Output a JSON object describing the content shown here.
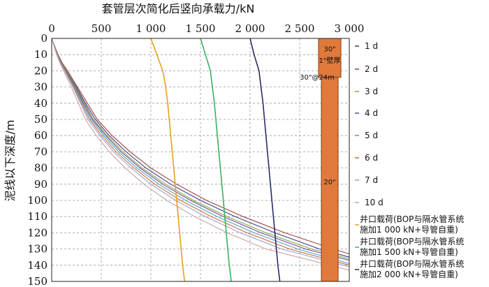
{
  "chart_data": {
    "type": "line",
    "title": "",
    "xlabel": "套管层次简化后竖向承载力/kN",
    "ylabel": "泥线以下深度/m",
    "x_ticks": [
      "0",
      "500",
      "1 000",
      "1 500",
      "2 000",
      "2 500",
      "3 000"
    ],
    "y_ticks": [
      "0",
      "10",
      "20",
      "30",
      "40",
      "50",
      "60",
      "70",
      "80",
      "90",
      "100",
      "110",
      "120",
      "130",
      "140",
      "150"
    ],
    "xlim": [
      0,
      3000
    ],
    "ylim": [
      150,
      0
    ],
    "x_axis_position": "top",
    "y_inverted": true,
    "grid": true,
    "legend_position": "right",
    "series": [
      {
        "name": "1 d",
        "color": "#3a3a8c",
        "depth": [
          0,
          5,
          10,
          15,
          20,
          30,
          40,
          50,
          60,
          70,
          80,
          90,
          100,
          110,
          120,
          130,
          135
        ],
        "load": [
          0,
          30,
          60,
          100,
          150,
          250,
          340,
          440,
          580,
          750,
          950,
          1200,
          1500,
          1850,
          2250,
          2700,
          3000
        ]
      },
      {
        "name": "2 d",
        "color": "#a0443c",
        "depth": [
          0,
          5,
          10,
          15,
          20,
          30,
          40,
          50,
          60,
          70,
          80,
          90,
          100,
          110,
          120,
          130,
          133
        ],
        "load": [
          0,
          32,
          65,
          105,
          160,
          260,
          360,
          460,
          610,
          790,
          1000,
          1260,
          1560,
          1930,
          2350,
          2840,
          3000
        ]
      },
      {
        "name": "3 d",
        "color": "#8aa83c",
        "depth": [
          0,
          5,
          10,
          15,
          20,
          30,
          40,
          50,
          60,
          70,
          80,
          90,
          100,
          110,
          120,
          130,
          136
        ],
        "load": [
          0,
          30,
          62,
          100,
          150,
          245,
          330,
          420,
          560,
          720,
          910,
          1150,
          1430,
          1770,
          2160,
          2620,
          3000
        ]
      },
      {
        "name": "4 d",
        "color": "#6a4a9a",
        "depth": [
          0,
          5,
          10,
          15,
          20,
          30,
          40,
          50,
          60,
          70,
          80,
          90,
          100,
          110,
          120,
          130,
          137
        ],
        "load": [
          0,
          29,
          60,
          98,
          145,
          240,
          320,
          410,
          545,
          700,
          890,
          1120,
          1400,
          1730,
          2110,
          2560,
          3000
        ]
      },
      {
        "name": "5 d",
        "color": "#4aa0b8",
        "depth": [
          0,
          5,
          10,
          15,
          20,
          30,
          40,
          50,
          60,
          70,
          80,
          90,
          100,
          110,
          120,
          130,
          139
        ],
        "load": [
          0,
          28,
          58,
          95,
          140,
          230,
          310,
          395,
          525,
          675,
          860,
          1080,
          1350,
          1670,
          2040,
          2480,
          3000
        ]
      },
      {
        "name": "6 d",
        "color": "#c86c3c",
        "depth": [
          0,
          5,
          10,
          15,
          20,
          30,
          40,
          50,
          60,
          70,
          80,
          90,
          100,
          110,
          120,
          130,
          140
        ],
        "load": [
          0,
          27,
          56,
          92,
          135,
          222,
          300,
          380,
          505,
          650,
          830,
          1040,
          1300,
          1610,
          1970,
          2400,
          3000
        ]
      },
      {
        "name": "7 d",
        "color": "#9aa0c8",
        "depth": [
          0,
          5,
          10,
          15,
          20,
          30,
          40,
          50,
          60,
          70,
          80,
          90,
          100,
          110,
          120,
          130,
          141
        ],
        "load": [
          0,
          26,
          54,
          88,
          130,
          214,
          290,
          365,
          485,
          625,
          800,
          1000,
          1250,
          1550,
          1900,
          2320,
          3000
        ]
      },
      {
        "name": "10 d",
        "color": "#c8a0a0",
        "depth": [
          0,
          5,
          10,
          15,
          20,
          30,
          40,
          50,
          60,
          70,
          80,
          90,
          100,
          110,
          120,
          130,
          143
        ],
        "load": [
          0,
          24,
          50,
          82,
          120,
          198,
          270,
          340,
          450,
          580,
          740,
          930,
          1160,
          1440,
          1770,
          2160,
          3000
        ]
      },
      {
        "name": "井口载荷(BOP与隔水管系统施加1 000 kN+导管自重)",
        "color": "#e8a020",
        "depth": [
          0,
          10,
          20,
          30,
          40,
          60,
          80,
          100,
          120,
          140,
          150
        ],
        "load": [
          1000,
          1060,
          1120,
          1150,
          1170,
          1200,
          1230,
          1260,
          1290,
          1320,
          1340
        ]
      },
      {
        "name": "井口载荷(BOP与隔水管系统施加1 500 kN+导管自重)",
        "color": "#3cb060",
        "depth": [
          0,
          10,
          20,
          30,
          40,
          60,
          80,
          100,
          120,
          140,
          150
        ],
        "load": [
          1500,
          1550,
          1600,
          1620,
          1640,
          1670,
          1700,
          1730,
          1760,
          1790,
          1810
        ]
      },
      {
        "name": "井口载荷(BOP与隔水管系统施加2 000 kN+导管自重)",
        "color": "#2a2a6a",
        "depth": [
          0,
          10,
          20,
          30,
          40,
          60,
          80,
          100,
          120,
          140,
          150
        ],
        "load": [
          2000,
          2040,
          2090,
          2110,
          2130,
          2160,
          2190,
          2220,
          2250,
          2280,
          2300
        ]
      }
    ],
    "annotations": {
      "casing_top_label": "30\"",
      "casing_top_sub": "1\"壁厚",
      "casing_step_label": "30\"@24m",
      "casing_lower_label": "20\""
    },
    "casing_color": "#e07a3c"
  }
}
